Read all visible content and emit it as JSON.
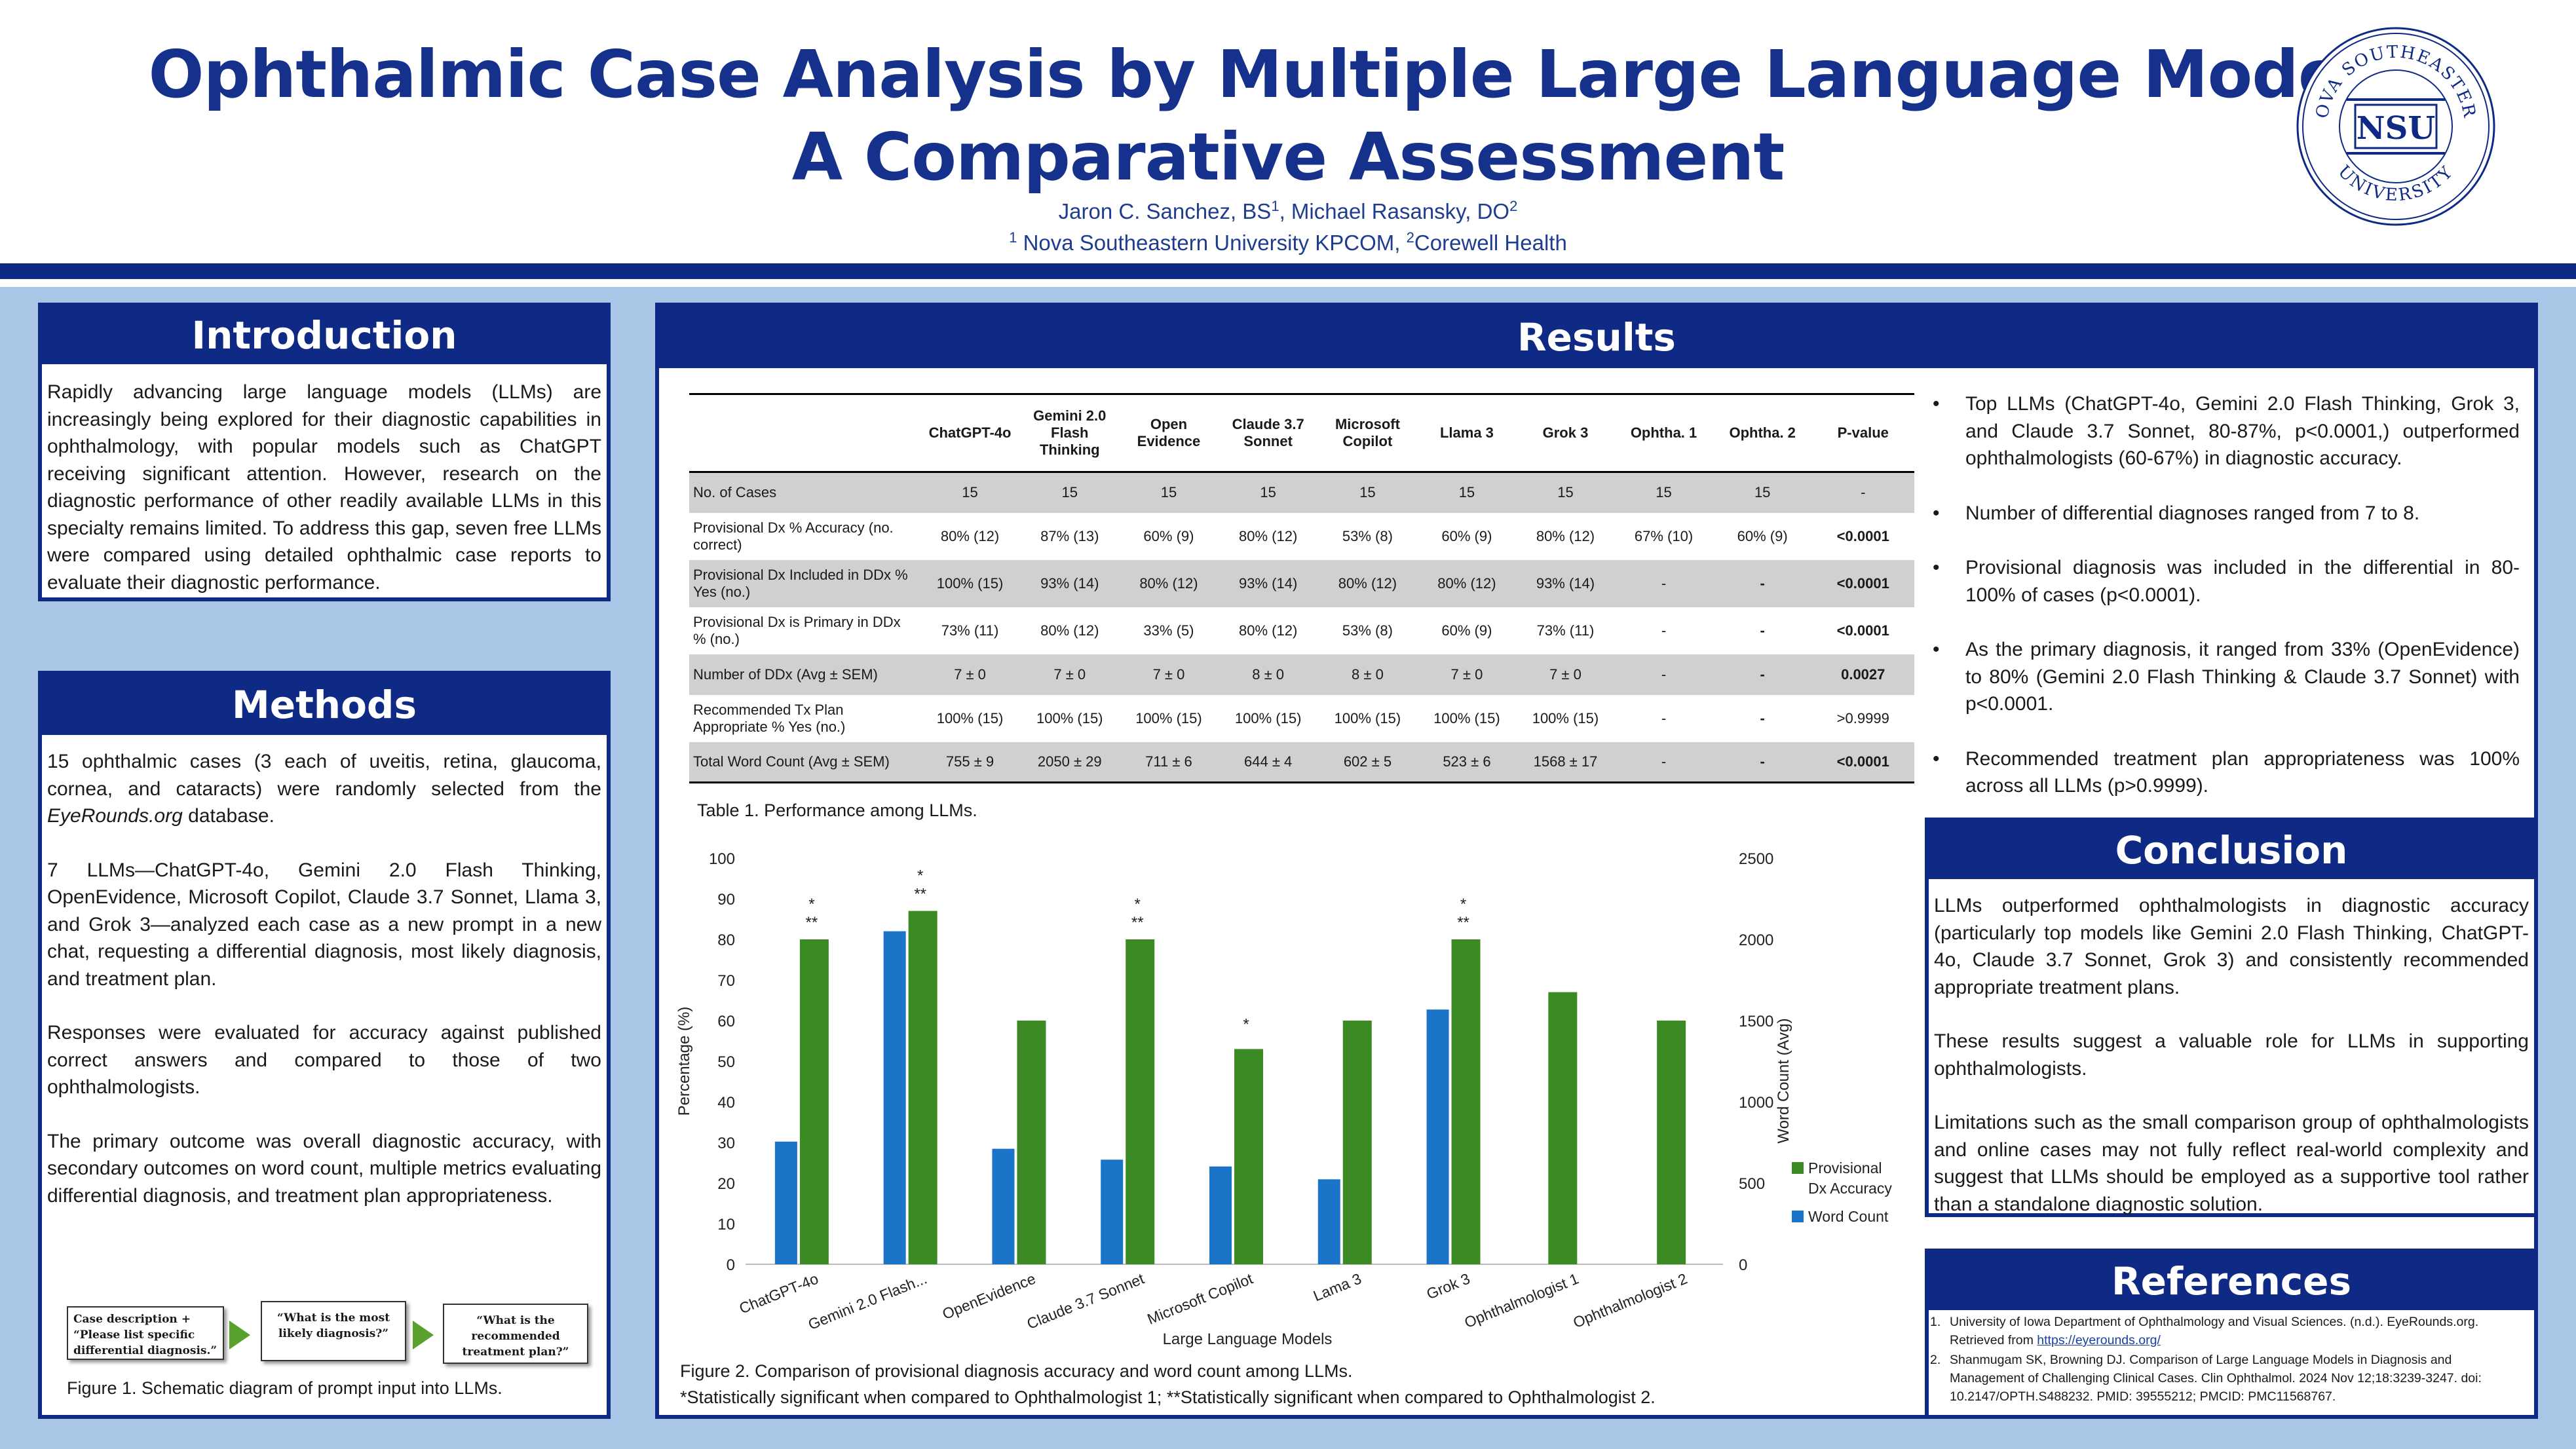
{
  "header": {
    "title_line1": "Ophthalmic Case Analysis by Multiple Large Language Models:",
    "title_line2": "A Comparative Assessment",
    "author1": "Jaron C. Sanchez, BS",
    "author1_sup": "1",
    "author_sep": ", Michael Rasansky, DO",
    "author2_sup": "2",
    "affil1_sup": "1",
    "affil1": " Nova Southeastern University KPCOM, ",
    "affil2_sup": "2",
    "affil2": "Corewell Health",
    "logo": {
      "abbr": "NSU",
      "arc_text": "NOVA SOUTHEASTERN UNIVERSITY",
      "color": "#0e2a84"
    }
  },
  "colors": {
    "navy": "#0e2a84",
    "title": "#15318c",
    "background": "#a9c6e6",
    "green": "#3b8a24",
    "blue": "#1a75c9",
    "table_shade": "#d0d0d0"
  },
  "introduction": {
    "heading": "Introduction",
    "text": "Rapidly advancing large language models (LLMs) are increasingly being explored for their diagnostic capabilities in ophthalmology, with popular models such as ChatGPT receiving significant attention. However, research on the diagnostic performance of other readily available LLMs in this specialty remains limited. To address this gap, seven free LLMs were compared using detailed ophthalmic case reports to evaluate their diagnostic performance."
  },
  "methods": {
    "heading": "Methods",
    "p1_a": "15 ophthalmic cases (3 each of uveitis, retina, glaucoma, cornea, and cataracts) were randomly selected from the ",
    "p1_em": "EyeRounds.org",
    "p1_b": " database.",
    "p2": "7 LLMs—ChatGPT-4o, Gemini 2.0 Flash Thinking, OpenEvidence, Microsoft Copilot, Claude 3.7 Sonnet, Llama 3, and Grok 3—analyzed each case as a new prompt in a new chat, requesting a differential diagnosis, most likely diagnosis, and treatment plan.",
    "p3": "Responses were evaluated for accuracy against published correct answers and compared to those of two ophthalmologists.",
    "p4": "The primary outcome was overall diagnostic accuracy, with secondary outcomes on word count, multiple metrics evaluating differential diagnosis, and treatment plan appropriateness.",
    "figure": {
      "box1": "Case description + “Please list specific differential diagnosis.”",
      "box2": "“What is the most likely diagnosis?”",
      "box3": "“What is the recommended treatment plan?”",
      "caption": "Figure 1. Schematic diagram of prompt input into LLMs."
    }
  },
  "results": {
    "heading": "Results",
    "table": {
      "headers": [
        "",
        "ChatGPT-4o",
        "Gemini 2.0 Flash Thinking",
        "Open Evidence",
        "Claude 3.7 Sonnet",
        "Microsoft Copilot",
        "Llama 3",
        "Grok 3",
        "Ophtha. 1",
        "Ophtha. 2",
        "P-value"
      ],
      "rows": [
        {
          "label": "No. of Cases",
          "cells": [
            "15",
            "15",
            "15",
            "15",
            "15",
            "15",
            "15",
            "15",
            "15",
            "-"
          ],
          "bold_p": false
        },
        {
          "label": "Provisional Dx % Accuracy (no. correct)",
          "cells": [
            "80% (12)",
            "87% (13)",
            "60% (9)",
            "80% (12)",
            "53% (8)",
            "60% (9)",
            "80% (12)",
            "67% (10)",
            "60% (9)",
            "<0.0001"
          ],
          "bold_p": true
        },
        {
          "label": "Provisional Dx Included in DDx % Yes (no.)",
          "cells": [
            "100% (15)",
            "93% (14)",
            "80% (12)",
            "93% (14)",
            "80% (12)",
            "80% (12)",
            "93% (14)",
            "-",
            "-",
            "<0.0001"
          ],
          "bold_p": true
        },
        {
          "label": "Provisional Dx is Primary in DDx % (no.)",
          "cells": [
            "73% (11)",
            "80% (12)",
            "33% (5)",
            "80% (12)",
            "53% (8)",
            "60% (9)",
            "73% (11)",
            "-",
            "-",
            "<0.0001"
          ],
          "bold_p": true
        },
        {
          "label": "Number of DDx (Avg ± SEM)",
          "cells": [
            "7 ± 0",
            "7 ± 0",
            "7 ± 0",
            "8 ± 0",
            "8 ± 0",
            "7 ± 0",
            "7 ± 0",
            "-",
            "-",
            "0.0027"
          ],
          "bold_p": true
        },
        {
          "label": "Recommended Tx Plan Appropriate % Yes (no.)",
          "cells": [
            "100% (15)",
            "100% (15)",
            "100% (15)",
            "100% (15)",
            "100% (15)",
            "100% (15)",
            "100% (15)",
            "-",
            "-",
            ">0.9999"
          ],
          "bold_p": false
        },
        {
          "label": "Total Word Count (Avg ± SEM)",
          "cells": [
            "755 ± 9",
            "2050 ± 29",
            "711 ± 6",
            "644 ± 4",
            "602 ± 5",
            "523 ± 6",
            "1568 ± 17",
            "-",
            "-",
            "<0.0001"
          ],
          "bold_p": true
        }
      ],
      "caption": "Table 1. Performance among LLMs."
    },
    "bullets": [
      "Top LLMs (ChatGPT-4o, Gemini 2.0 Flash Thinking, Grok 3, and Claude 3.7 Sonnet, 80-87%, p<0.0001,) outperformed ophthalmologists (60-67%) in diagnostic accuracy.",
      "Number of differential diagnoses ranged from 7 to 8.",
      "Provisional diagnosis was included in the differential in 80-100% of cases (p<0.0001).",
      "As the primary diagnosis, it ranged from 33% (OpenEvidence) to 80% (Gemini 2.0 Flash Thinking & Claude 3.7 Sonnet) with p<0.0001.",
      "Recommended treatment plan appropriateness was 100% across all LLMs (p>0.9999)."
    ],
    "figure_caption_1": "Figure 2. Comparison of provisional diagnosis accuracy and word count among LLMs.",
    "figure_caption_2": "*Statistically significant when compared to Ophthalmologist 1; **Statistically significant when compared to Ophthalmologist 2."
  },
  "chart_data": {
    "type": "bar",
    "categories": [
      "ChatGPT-4o",
      "Gemini 2.0 Flash...",
      "OpenEvidence",
      "Claude 3.7 Sonnet",
      "Microsoft Copilot",
      "Lama 3",
      "Grok 3",
      "Ophthalmologist 1",
      "Ophthalmologist 2"
    ],
    "series": [
      {
        "name": "Word Count",
        "axis": "right",
        "color": "#1a75c9",
        "values": [
          755,
          2050,
          711,
          644,
          602,
          523,
          1568,
          null,
          null
        ]
      },
      {
        "name": "Provisional Dx Accuracy",
        "axis": "left",
        "color": "#3b8a24",
        "values": [
          80,
          87,
          60,
          80,
          53,
          60,
          80,
          67,
          60
        ]
      }
    ],
    "significance": [
      "*\n**",
      "*\n**",
      "",
      "*\n**",
      "*",
      "",
      "*\n**",
      "",
      ""
    ],
    "xlabel": "Large Language Models",
    "ylabel": "Percentage (%)",
    "y2label": "Word Count (Avg)",
    "ylim": [
      0,
      100
    ],
    "y2lim": [
      0,
      2500
    ],
    "yticks": [
      0,
      10,
      20,
      30,
      40,
      50,
      60,
      70,
      80,
      90,
      100
    ],
    "y2ticks": [
      0,
      500,
      1000,
      1500,
      2000,
      2500
    ],
    "legend": [
      "Provisional Dx Accuracy",
      "Word Count"
    ],
    "legend_position": "right",
    "grid": false
  },
  "conclusion": {
    "heading": "Conclusion",
    "p1": "LLMs outperformed ophthalmologists in diagnostic accuracy (particularly top models like Gemini 2.0 Flash Thinking, ChatGPT-4o, Claude 3.7 Sonnet, Grok 3) and consistently recommended appropriate treatment plans.",
    "p2": "These results suggest a valuable role for LLMs in supporting ophthalmologists.",
    "p3": "Limitations such as the small comparison group of ophthalmologists and online cases may not fully reflect real-world complexity and suggest that LLMs should be employed as a supportive tool rather than a standalone diagnostic solution."
  },
  "references": {
    "heading": "References",
    "r1_num": "1.",
    "r1_text": "University of Iowa Department of Ophthalmology and Visual Sciences. (n.d.). EyeRounds.org. Retrieved from ",
    "r1_link": "https://eyerounds.org/",
    "r2_num": "2.",
    "r2_text": "Shanmugam SK, Browning DJ. Comparison of Large Language Models in Diagnosis and Management of Challenging Clinical Cases. Clin Ophthalmol. 2024 Nov 12;18:3239-3247. doi: 10.2147/OPTH.S488232. PMID: 39555212; PMCID: PMC11568767."
  }
}
